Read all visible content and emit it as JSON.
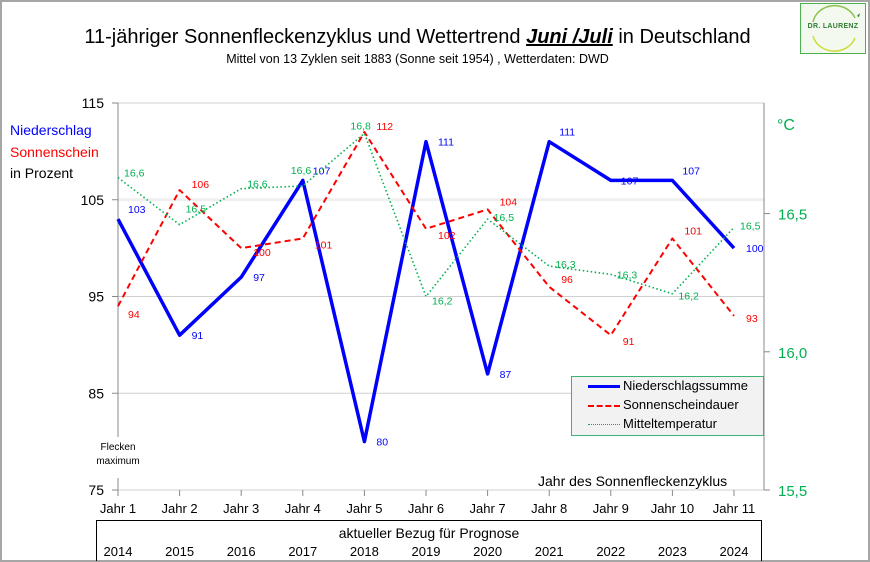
{
  "chart_data": {
    "type": "line",
    "title_parts": [
      "11-jähriger Sonnenfleckenzyklus und Wettertrend ",
      "Juni /Juli",
      " in Deutschland"
    ],
    "subtitle": "Mittel von 13 Zyklen seit 1883 (Sonne seit 1954) , Wetterdaten:  DWD",
    "categories": [
      "Jahr 1",
      "Jahr 2",
      "Jahr 3",
      "Jahr 4",
      "Jahr 5",
      "Jahr 6",
      "Jahr 7",
      "Jahr 8",
      "Jahr 9",
      "Jahr 10",
      "Jahr 11"
    ],
    "years": [
      "2014",
      "2015",
      "2016",
      "2017",
      "2018",
      "2019",
      "2020",
      "2021",
      "2022",
      "2023",
      "2024"
    ],
    "xlabel": "Jahr des Sonnenfleckenzyklus",
    "secondary_xlabel": "aktueller Bezug für Prognose",
    "annotation": [
      "Flecken",
      "maximum"
    ],
    "y_left": {
      "labels": [
        "Niederschlag",
        "Sonnenschein",
        "in Prozent"
      ],
      "label_colors": [
        "#0000ff",
        "#ff0000",
        "#000000"
      ],
      "ylim": [
        75,
        115
      ],
      "ticks": [
        75,
        85,
        95,
        105,
        115
      ]
    },
    "y_right": {
      "label": "°C",
      "ylim": [
        15.5,
        16.9
      ],
      "ticks": [
        15.5,
        16.0,
        16.5
      ],
      "tick_labels": [
        "15,5",
        "16,0",
        "16,5"
      ],
      "color": "#00b050"
    },
    "grid": true,
    "legend_position": "bottom-right",
    "series": [
      {
        "name": "Niederschlagssumme",
        "axis": "left",
        "color": "#0000ff",
        "style": "solid",
        "values": [
          103,
          91,
          97,
          107,
          80,
          111,
          87,
          111,
          107,
          107,
          100
        ],
        "labels": [
          "103",
          "91",
          "97",
          "107",
          "80",
          "111",
          "87",
          "111",
          "107",
          "107",
          "100"
        ]
      },
      {
        "name": "Sonnenscheindauer",
        "axis": "left",
        "color": "#ff0000",
        "style": "dashed",
        "values": [
          94,
          106,
          100,
          101,
          112,
          102,
          104,
          96,
          91,
          101,
          93
        ],
        "labels": [
          "94",
          "106",
          "100",
          "101",
          "112",
          "102",
          "104",
          "96",
          "91",
          "101",
          "93"
        ]
      },
      {
        "name": "Mitteltemperatur",
        "axis": "right",
        "color": "#00b050",
        "style": "dotted",
        "values": [
          16.63,
          16.46,
          16.59,
          16.6,
          16.79,
          16.2,
          16.48,
          16.31,
          16.28,
          16.21,
          16.45
        ],
        "labels": [
          "16,6",
          "16,5",
          "16,6",
          "16,6",
          "16,8",
          "16,2",
          "16,5",
          "16,3",
          "16,3",
          "16,2",
          "16,5"
        ]
      }
    ]
  },
  "logo": {
    "text": "DR. LAURENZ"
  }
}
